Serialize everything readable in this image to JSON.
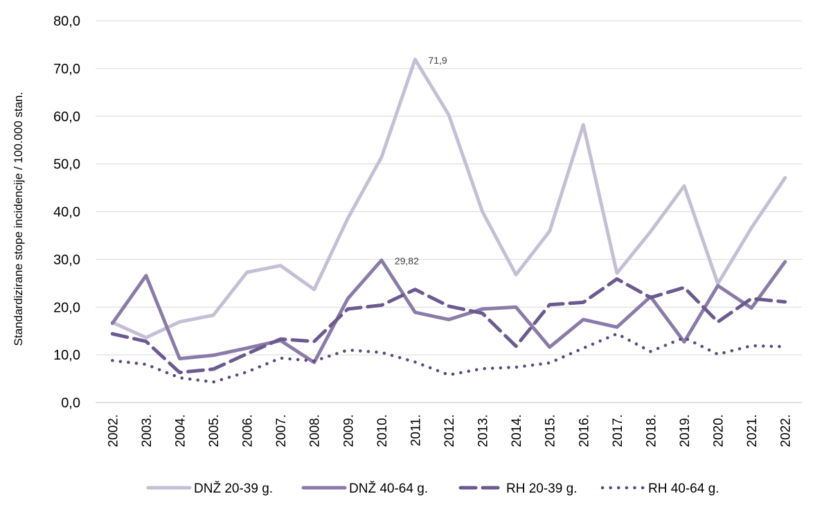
{
  "chart_data": {
    "type": "line",
    "title": "",
    "xlabel": "",
    "ylabel": "Standardizirane stope incidencije / 100.000 stan.",
    "ylim": [
      0,
      80
    ],
    "y_ticks": [
      "0,0",
      "10,0",
      "20,0",
      "30,0",
      "40,0",
      "50,0",
      "60,0",
      "70,0",
      "80,0"
    ],
    "grid": "horizontal",
    "legend_position": "bottom",
    "categories": [
      "2002.",
      "2003.",
      "2004.",
      "2005.",
      "2006.",
      "2007.",
      "2008.",
      "2009.",
      "2010.",
      "2011.",
      "2012.",
      "2013.",
      "2014.",
      "2015.",
      "2016.",
      "2017.",
      "2018.",
      "2019.",
      "2020.",
      "2021.",
      "2022."
    ],
    "series": [
      {
        "name": "DNŽ 20-39 g.",
        "color": "#c5bfd5",
        "style": "solid",
        "values": [
          16.8,
          13.6,
          16.9,
          18.3,
          27.3,
          28.7,
          23.7,
          38.6,
          51.4,
          71.9,
          60.3,
          40.0,
          26.8,
          35.9,
          58.2,
          27.1,
          35.8,
          45.4,
          24.9,
          36.6,
          47.1
        ]
      },
      {
        "name": "DNŽ 40-64 g.",
        "color": "#8a7ba8",
        "style": "solid",
        "values": [
          16.6,
          26.6,
          9.2,
          9.9,
          11.4,
          13.0,
          8.4,
          21.8,
          29.82,
          18.9,
          17.4,
          19.6,
          20.0,
          11.6,
          17.4,
          15.8,
          22.2,
          12.7,
          24.5,
          19.8,
          29.5
        ]
      },
      {
        "name": "RH 20-39 g.",
        "color": "#6b5a90",
        "style": "dashed",
        "values": [
          14.4,
          12.8,
          6.3,
          7.0,
          10.2,
          13.3,
          12.8,
          19.6,
          20.4,
          23.7,
          20.2,
          18.7,
          11.8,
          20.5,
          21.0,
          25.9,
          22.0,
          24.1,
          16.9,
          21.8,
          21.1
        ]
      },
      {
        "name": "RH 40-64 g.",
        "color": "#5a4a80",
        "style": "dotted",
        "values": [
          8.8,
          8.0,
          5.2,
          4.3,
          6.4,
          9.3,
          8.7,
          11.0,
          10.5,
          8.5,
          5.8,
          7.1,
          7.4,
          8.3,
          11.4,
          14.4,
          10.7,
          13.6,
          10.1,
          11.9,
          11.7
        ]
      }
    ],
    "annotations": [
      {
        "series": 0,
        "index": 9,
        "text": "71,9"
      },
      {
        "series": 1,
        "index": 8,
        "text": "29,82"
      }
    ]
  }
}
